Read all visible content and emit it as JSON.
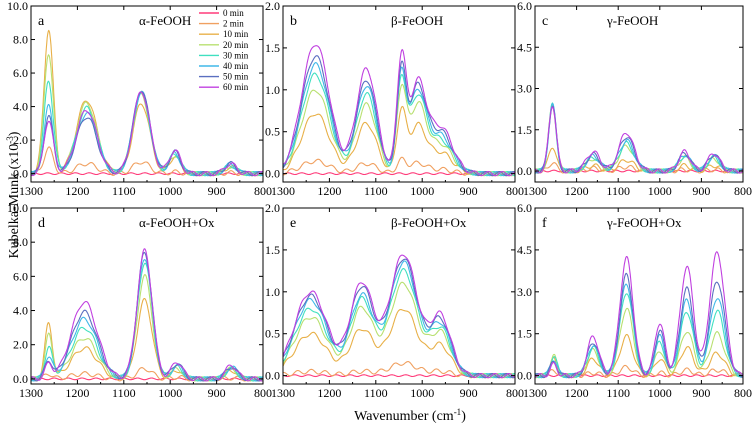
{
  "chart_data": {
    "type": "line",
    "ylabel": "Kubelka-Munk (x10",
    "ylabel_sup": "-3",
    "ylabel_end": ")",
    "xlabel": "Wavenumber (cm",
    "xlabel_sup": "-1",
    "xlabel_end": ")",
    "legend": {
      "location": "top-right of panel a",
      "entries": [
        {
          "name": "0 min",
          "color": "#ff3b7a"
        },
        {
          "name": "2 min",
          "color": "#f0a060"
        },
        {
          "name": "10 min",
          "color": "#e8b048"
        },
        {
          "name": "20 min",
          "color": "#b8e070"
        },
        {
          "name": "30 min",
          "color": "#40e0c0"
        },
        {
          "name": "40 min",
          "color": "#40b8e8"
        },
        {
          "name": "50 min",
          "color": "#5a6fc0"
        },
        {
          "name": "60 min",
          "color": "#c040e0"
        }
      ]
    },
    "panels": [
      {
        "letter": "a",
        "title": "α-FeOOH",
        "xlim": [
          1300,
          800
        ],
        "ylim": [
          -0.5,
          10
        ],
        "xticks": [
          "1300",
          "1200",
          "1100",
          "1000",
          "900",
          "800"
        ],
        "yticks": [
          "0.0",
          "2.0",
          "4.0",
          "6.0",
          "8.0",
          "10.0"
        ],
        "ytick_values": [
          0,
          2,
          4,
          6,
          8,
          10
        ],
        "peaks": [
          {
            "x": 1262,
            "w": 10,
            "a": [
              0,
              1.5,
              8.6,
              7.2,
              5.5,
              4.0,
              3.4,
              3.2
            ]
          },
          {
            "x": 1180,
            "w": 22,
            "a": [
              0,
              0.6,
              4.4,
              4.2,
              3.9,
              3.6,
              3.4,
              3.8
            ]
          },
          {
            "x": 1062,
            "w": 18,
            "a": [
              0,
              0.7,
              4.2,
              4.7,
              4.8,
              4.9,
              5.0,
              4.9
            ]
          },
          {
            "x": 990,
            "w": 12,
            "a": [
              0,
              0.1,
              1.0,
              1.1,
              1.2,
              1.2,
              1.3,
              1.4
            ]
          },
          {
            "x": 870,
            "w": 12,
            "a": [
              0,
              0.05,
              0.4,
              0.45,
              0.5,
              0.55,
              0.6,
              0.6
            ]
          }
        ]
      },
      {
        "letter": "b",
        "title": "β-FeOOH",
        "xlim": [
          1300,
          800
        ],
        "ylim": [
          -0.1,
          2.0
        ],
        "xticks": [
          "1300",
          "1200",
          "1100",
          "1000",
          "900",
          "800"
        ],
        "yticks": [
          "0.0",
          "0.5",
          "1.0",
          "1.5",
          "2.0"
        ],
        "ytick_values": [
          0,
          0.5,
          1.0,
          1.5,
          2.0
        ],
        "peaks": [
          {
            "x": 1230,
            "w": 30,
            "a": [
              0,
              0.15,
              0.72,
              1.0,
              1.18,
              1.3,
              1.4,
              1.55
            ]
          },
          {
            "x": 1120,
            "w": 22,
            "a": [
              0,
              0.12,
              0.6,
              0.82,
              0.95,
              1.05,
              1.12,
              1.25
            ]
          },
          {
            "x": 1045,
            "w": 10,
            "a": [
              0,
              0.15,
              0.7,
              0.95,
              1.05,
              1.1,
              1.15,
              1.3
            ]
          },
          {
            "x": 1010,
            "w": 18,
            "a": [
              0,
              0.12,
              0.55,
              0.8,
              0.9,
              0.95,
              1.0,
              1.05
            ]
          },
          {
            "x": 960,
            "w": 25,
            "a": [
              0,
              0.05,
              0.25,
              0.35,
              0.4,
              0.45,
              0.5,
              0.55
            ]
          }
        ]
      },
      {
        "letter": "c",
        "title": "γ-FeOOH",
        "xlim": [
          1300,
          800
        ],
        "ylim": [
          -0.4,
          6.0
        ],
        "xticks": [
          "1300",
          "1200",
          "1100",
          "1000",
          "900",
          "800"
        ],
        "yticks": [
          "0.0",
          "1.5",
          "3.0",
          "4.5",
          "6.0"
        ],
        "ytick_values": [
          0,
          1.5,
          3.0,
          4.5,
          6.0
        ],
        "peaks": [
          {
            "x": 1258,
            "w": 9,
            "a": [
              0,
              0.3,
              0.9,
              2.4,
              2.4,
              2.4,
              2.4,
              2.4
            ]
          },
          {
            "x": 1160,
            "w": 16,
            "a": [
              0,
              0.1,
              0.2,
              0.45,
              0.5,
              0.55,
              0.6,
              0.7
            ]
          },
          {
            "x": 1080,
            "w": 18,
            "a": [
              0,
              0.15,
              0.4,
              0.9,
              1.0,
              1.1,
              1.25,
              1.4
            ]
          },
          {
            "x": 940,
            "w": 14,
            "a": [
              0,
              0.05,
              0.2,
              0.5,
              0.55,
              0.6,
              0.65,
              0.7
            ]
          },
          {
            "x": 870,
            "w": 14,
            "a": [
              0,
              0.05,
              0.2,
              0.45,
              0.5,
              0.55,
              0.6,
              0.65
            ]
          }
        ]
      },
      {
        "letter": "d",
        "title": "α-FeOOH+Ox",
        "xlim": [
          1300,
          800
        ],
        "ylim": [
          -0.3,
          10
        ],
        "xticks": [
          "1300",
          "1200",
          "1100",
          "1000",
          "900",
          "800"
        ],
        "yticks": [
          "0.0",
          "2.0",
          "4.0",
          "6.0",
          "8.0",
          "10.0"
        ],
        "ytick_values": [
          0,
          2,
          4,
          6,
          8,
          10
        ],
        "peaks": [
          {
            "x": 1262,
            "w": 8,
            "a": [
              0,
              0.3,
              3.2,
              2.5,
              1.8,
              1.3,
              1.0,
              0.8
            ]
          },
          {
            "x": 1185,
            "w": 28,
            "a": [
              0,
              0.3,
              1.8,
              2.4,
              3.0,
              3.5,
              3.9,
              4.5
            ]
          },
          {
            "x": 1055,
            "w": 16,
            "a": [
              0,
              0.6,
              4.6,
              6.0,
              6.8,
              7.1,
              7.4,
              7.5
            ]
          },
          {
            "x": 985,
            "w": 12,
            "a": [
              0,
              0.1,
              0.5,
              0.6,
              0.7,
              0.8,
              0.9,
              1.0
            ]
          },
          {
            "x": 868,
            "w": 12,
            "a": [
              0,
              0.05,
              0.5,
              0.6,
              0.6,
              0.7,
              0.7,
              0.8
            ]
          }
        ]
      },
      {
        "letter": "e",
        "title": "β-FeOOH+Ox",
        "xlim": [
          1300,
          800
        ],
        "ylim": [
          -0.1,
          2.0
        ],
        "xticks": [
          "1300",
          "1200",
          "1100",
          "1000",
          "900",
          "800"
        ],
        "yticks": [
          "0.0",
          "0.5",
          "1.0",
          "1.5",
          "2.0"
        ],
        "ytick_values": [
          0,
          0.5,
          1.0,
          1.5,
          2.0
        ],
        "peaks": [
          {
            "x": 1240,
            "w": 35,
            "a": [
              0,
              0.05,
              0.5,
              0.7,
              0.8,
              0.9,
              0.95,
              1.0
            ]
          },
          {
            "x": 1130,
            "w": 25,
            "a": [
              0,
              0.05,
              0.55,
              0.8,
              0.9,
              0.95,
              1.05,
              1.1
            ]
          },
          {
            "x": 1040,
            "w": 30,
            "a": [
              0,
              0.15,
              0.8,
              1.1,
              1.25,
              1.35,
              1.4,
              1.45
            ]
          },
          {
            "x": 960,
            "w": 22,
            "a": [
              0,
              0.05,
              0.35,
              0.5,
              0.55,
              0.6,
              0.65,
              0.7
            ]
          }
        ]
      },
      {
        "letter": "f",
        "title": "γ-FeOOH+Ox",
        "xlim": [
          1300,
          800
        ],
        "ylim": [
          -0.3,
          6.0
        ],
        "xticks": [
          "1300",
          "1200",
          "1100",
          "1000",
          "900",
          "800"
        ],
        "yticks": [
          "0.0",
          "1.5",
          "3.0",
          "4.5",
          "6.0"
        ],
        "ytick_values": [
          0,
          1.5,
          3.0,
          4.5,
          6.0
        ],
        "peaks": [
          {
            "x": 1255,
            "w": 8,
            "a": [
              0,
              0.2,
              0.6,
              0.7,
              0.7,
              0.6,
              0.5,
              0.4
            ]
          },
          {
            "x": 1160,
            "w": 14,
            "a": [
              0,
              0.1,
              0.6,
              0.9,
              1.0,
              1.1,
              1.2,
              1.4
            ]
          },
          {
            "x": 1080,
            "w": 16,
            "a": [
              0,
              0.3,
              1.4,
              2.4,
              3.0,
              3.3,
              3.6,
              4.2
            ]
          },
          {
            "x": 1000,
            "w": 12,
            "a": [
              0,
              0.1,
              0.6,
              0.9,
              1.2,
              1.4,
              1.6,
              1.9
            ]
          },
          {
            "x": 935,
            "w": 16,
            "a": [
              0,
              0.2,
              1.0,
              1.6,
              2.3,
              2.7,
              3.1,
              3.9
            ]
          },
          {
            "x": 862,
            "w": 18,
            "a": [
              0,
              0.2,
              0.8,
              1.5,
              2.3,
              2.8,
              3.4,
              4.4
            ]
          }
        ]
      }
    ]
  }
}
